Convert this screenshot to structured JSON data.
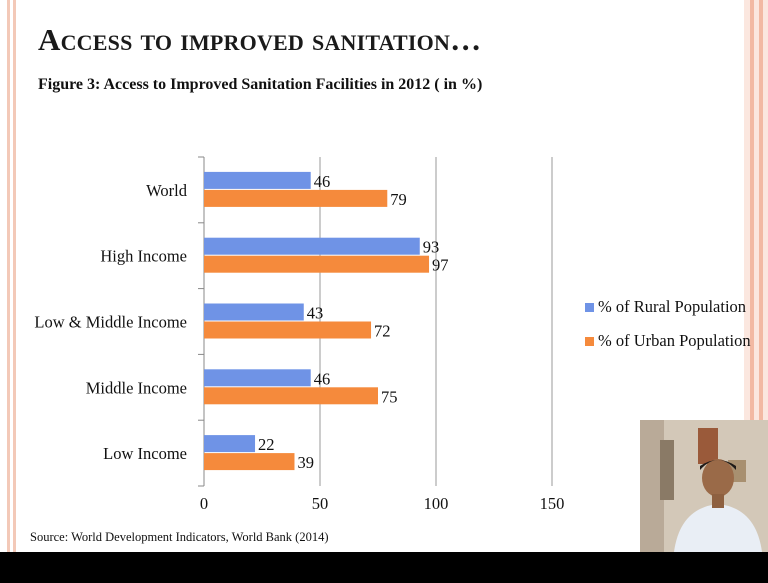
{
  "slide": {
    "title": "Access to improved sanitation…",
    "figure_caption": "Figure 3: Access to Improved Sanitation Facilities in 2012 ( in %)",
    "source": "Source: World Development Indicators, World Bank (2014)"
  },
  "colors": {
    "rural": "#6f93e6",
    "urban": "#f58a3c",
    "frame_accent": "#f2b9a3",
    "bottom_bar": "#000000"
  },
  "chart_data": {
    "type": "bar",
    "orientation": "horizontal",
    "categories": [
      "World",
      "High Income",
      "Low & Middle Income",
      "Middle Income",
      "Low Income"
    ],
    "series": [
      {
        "name": "% of Rural Population",
        "values": [
          46,
          93,
          43,
          46,
          22
        ]
      },
      {
        "name": "% of Urban Population",
        "values": [
          79,
          97,
          72,
          75,
          39
        ]
      }
    ],
    "xlim": [
      0,
      150
    ],
    "xticks": [
      0,
      50,
      100,
      150
    ],
    "grid": true,
    "legend_position": "right"
  }
}
